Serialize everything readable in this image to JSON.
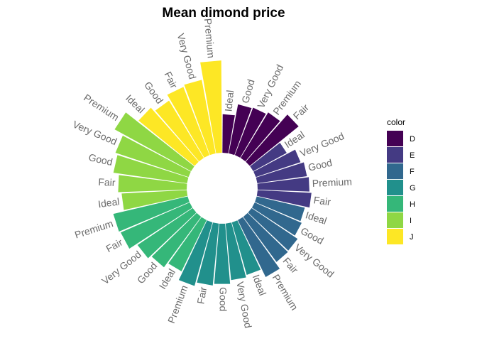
{
  "chart_data": {
    "type": "bar",
    "coord": "polar",
    "title": "Mean dimond price",
    "legend": {
      "title": "color",
      "position": "right"
    },
    "grid": false,
    "bars": [
      {
        "color": "D",
        "cut": "Ideal",
        "value": 2629
      },
      {
        "color": "D",
        "cut": "Good",
        "value": 3405
      },
      {
        "color": "D",
        "cut": "Very Good",
        "value": 3470
      },
      {
        "color": "D",
        "cut": "Premium",
        "value": 3631
      },
      {
        "color": "D",
        "cut": "Fair",
        "value": 4291
      },
      {
        "color": "E",
        "cut": "Ideal",
        "value": 2598
      },
      {
        "color": "E",
        "cut": "Very Good",
        "value": 3215
      },
      {
        "color": "E",
        "cut": "Good",
        "value": 3424
      },
      {
        "color": "E",
        "cut": "Premium",
        "value": 3539
      },
      {
        "color": "E",
        "cut": "Fair",
        "value": 3682
      },
      {
        "color": "F",
        "cut": "Ideal",
        "value": 3375
      },
      {
        "color": "F",
        "cut": "Good",
        "value": 3496
      },
      {
        "color": "F",
        "cut": "Very Good",
        "value": 3779
      },
      {
        "color": "F",
        "cut": "Fair",
        "value": 3827
      },
      {
        "color": "F",
        "cut": "Premium",
        "value": 4325
      },
      {
        "color": "G",
        "cut": "Ideal",
        "value": 3721
      },
      {
        "color": "G",
        "cut": "Very Good",
        "value": 3873
      },
      {
        "color": "G",
        "cut": "Good",
        "value": 4123
      },
      {
        "color": "G",
        "cut": "Fair",
        "value": 4239
      },
      {
        "color": "G",
        "cut": "Premium",
        "value": 4501
      },
      {
        "color": "H",
        "cut": "Ideal",
        "value": 3889
      },
      {
        "color": "H",
        "cut": "Good",
        "value": 4276
      },
      {
        "color": "H",
        "cut": "Very Good",
        "value": 4535
      },
      {
        "color": "H",
        "cut": "Fair",
        "value": 5136
      },
      {
        "color": "H",
        "cut": "Premium",
        "value": 5217
      },
      {
        "color": "I",
        "cut": "Ideal",
        "value": 4452
      },
      {
        "color": "I",
        "cut": "Fair",
        "value": 4685
      },
      {
        "color": "I",
        "cut": "Good",
        "value": 5079
      },
      {
        "color": "I",
        "cut": "Very Good",
        "value": 5256
      },
      {
        "color": "I",
        "cut": "Premium",
        "value": 5947
      },
      {
        "color": "J",
        "cut": "Ideal",
        "value": 4918
      },
      {
        "color": "J",
        "cut": "Good",
        "value": 4574
      },
      {
        "color": "J",
        "cut": "Fair",
        "value": 4976
      },
      {
        "color": "J",
        "cut": "Very Good",
        "value": 5104
      },
      {
        "color": "J",
        "cut": "Premium",
        "value": 6295
      }
    ],
    "legend_entries": [
      {
        "label": "D",
        "fill": "#440154"
      },
      {
        "label": "E",
        "fill": "#443A83"
      },
      {
        "label": "F",
        "fill": "#31688E"
      },
      {
        "label": "G",
        "fill": "#21908C"
      },
      {
        "label": "H",
        "fill": "#35B779"
      },
      {
        "label": "I",
        "fill": "#8FD744"
      },
      {
        "label": "J",
        "fill": "#FDE725"
      }
    ]
  }
}
